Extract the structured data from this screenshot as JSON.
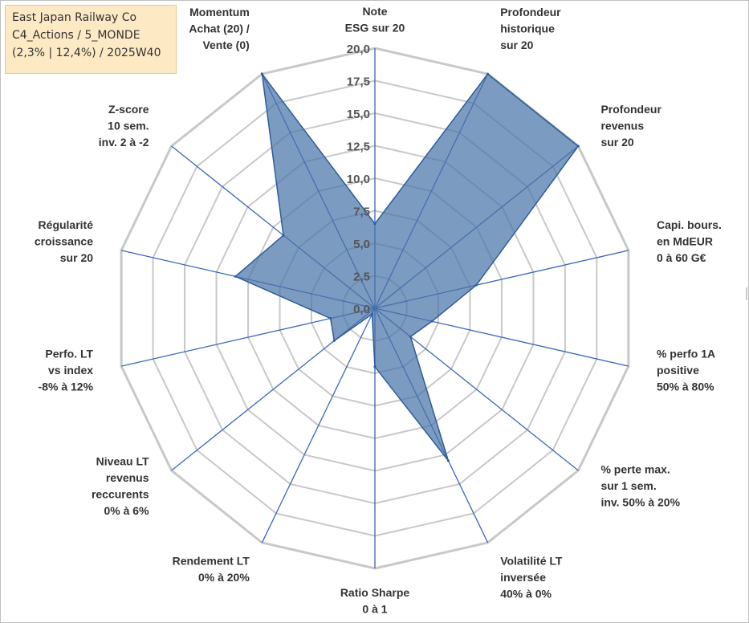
{
  "title_box": {
    "line1": "East Japan Railway Co",
    "line2": "C4_Actions / 5_MONDE",
    "line3": "(2,3% | 12,4%) / 2025W40"
  },
  "chart_data": {
    "type": "radar",
    "rlim": [
      0,
      20
    ],
    "ticks": [
      "0,0",
      "2,5",
      "5,0",
      "7,5",
      "10,0",
      "12,5",
      "15,0",
      "17,5",
      "20,0"
    ],
    "tick_values": [
      0,
      2.5,
      5,
      7.5,
      10,
      12.5,
      15,
      17.5,
      20
    ],
    "grid": true,
    "legend": "none",
    "colors": {
      "fill": "#4a74a8",
      "stroke": "#2e5c9a",
      "grid": "#c8c8c8",
      "axis": "#3a66b8"
    },
    "axes": [
      {
        "label": [
          "Note",
          "ESG sur 20"
        ],
        "value": 6.5
      },
      {
        "label": [
          "Profondeur",
          "historique",
          "sur 20"
        ],
        "value": 20.0
      },
      {
        "label": [
          "Profondeur",
          "revenus",
          "sur 20"
        ],
        "value": 20.0
      },
      {
        "label": [
          "Capi. bours.",
          "en MdEUR",
          "0 à 60 G€"
        ],
        "value": 8.0
      },
      {
        "label": [
          "% perfo 1A",
          "positive",
          "50% à 80%"
        ],
        "value": 4.5
      },
      {
        "label": [
          "% perte max.",
          "sur 1 sem.",
          "inv. 50% à 20%"
        ],
        "value": 3.5
      },
      {
        "label": [
          "Volatilité LT",
          "inversée",
          "40% à 0%"
        ],
        "value": 13.0
      },
      {
        "label": [
          "Ratio Sharpe",
          "0 à 1"
        ],
        "value": 4.5
      },
      {
        "label": [
          "Rendement LT",
          "0% à 20%"
        ],
        "value": 0.5
      },
      {
        "label": [
          "Niveau LT",
          "revenus",
          "reccurents",
          "0% à 6%"
        ],
        "value": 4.0
      },
      {
        "label": [
          "Perfo. LT",
          "vs index",
          "-8% à 12%"
        ],
        "value": 3.5
      },
      {
        "label": [
          "Régularité",
          "croissance",
          "sur 20"
        ],
        "value": 11.0
      },
      {
        "label": [
          "Z-score",
          "10 sem.",
          "inv. 2 à -2"
        ],
        "value": 9.0
      },
      {
        "label": [
          "Momentum",
          "Achat (20) /",
          "Vente (0)"
        ],
        "value": 20.0
      }
    ]
  }
}
